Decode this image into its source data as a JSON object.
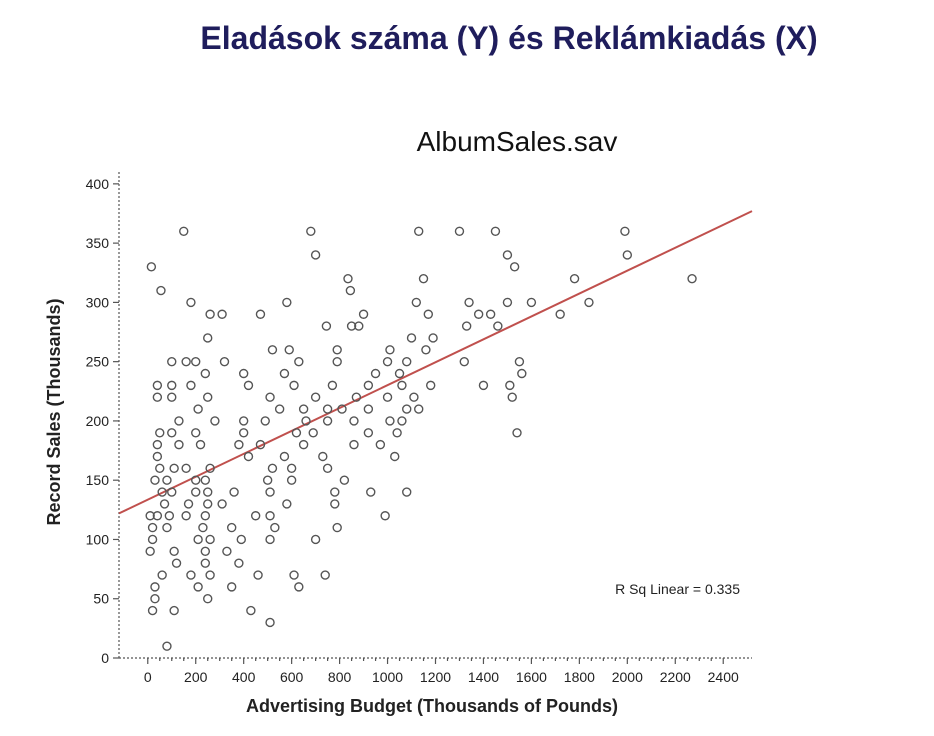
{
  "slide": {
    "title": "Eladások száma (Y) és Reklámkiadás (X)"
  },
  "chart_data": {
    "type": "scatter",
    "title": "AlbumSales.sav",
    "xlabel": "Advertising Budget (Thousands of Pounds)",
    "ylabel": "Record Sales (Thousands)",
    "xlim": [
      -120,
      2520
    ],
    "ylim": [
      0,
      410
    ],
    "x_ticks": [
      0,
      200,
      400,
      600,
      800,
      1000,
      1200,
      1400,
      1600,
      1800,
      2000,
      2200,
      2400
    ],
    "y_ticks": [
      0,
      50,
      100,
      150,
      200,
      250,
      300,
      350,
      400
    ],
    "annotation": "R Sq Linear = 0.335",
    "fit_line": {
      "x": [
        -120,
        2520
      ],
      "y": [
        122,
        377
      ]
    },
    "colors": {
      "title": "#1f1d5c",
      "points": "#555555",
      "fit": "#c0504d"
    },
    "grid": false,
    "points": [
      [
        15,
        330
      ],
      [
        55,
        310
      ],
      [
        150,
        360
      ],
      [
        680,
        360
      ],
      [
        700,
        340
      ],
      [
        1130,
        360
      ],
      [
        1300,
        360
      ],
      [
        1450,
        360
      ],
      [
        1990,
        360
      ],
      [
        2000,
        340
      ],
      [
        1500,
        340
      ],
      [
        1530,
        330
      ],
      [
        1150,
        320
      ],
      [
        835,
        320
      ],
      [
        845,
        310
      ],
      [
        1780,
        320
      ],
      [
        2270,
        320
      ],
      [
        180,
        300
      ],
      [
        580,
        300
      ],
      [
        1120,
        300
      ],
      [
        1340,
        300
      ],
      [
        1500,
        300
      ],
      [
        1600,
        300
      ],
      [
        1840,
        300
      ],
      [
        260,
        290
      ],
      [
        310,
        290
      ],
      [
        470,
        290
      ],
      [
        900,
        290
      ],
      [
        1380,
        290
      ],
      [
        1430,
        290
      ],
      [
        1170,
        290
      ],
      [
        1720,
        290
      ],
      [
        745,
        280
      ],
      [
        850,
        280
      ],
      [
        880,
        280
      ],
      [
        1330,
        280
      ],
      [
        1460,
        280
      ],
      [
        250,
        270
      ],
      [
        1100,
        270
      ],
      [
        1190,
        270
      ],
      [
        520,
        260
      ],
      [
        590,
        260
      ],
      [
        790,
        260
      ],
      [
        1010,
        260
      ],
      [
        1160,
        260
      ],
      [
        100,
        250
      ],
      [
        160,
        250
      ],
      [
        200,
        250
      ],
      [
        320,
        250
      ],
      [
        630,
        250
      ],
      [
        790,
        250
      ],
      [
        1000,
        250
      ],
      [
        1080,
        250
      ],
      [
        1320,
        250
      ],
      [
        1550,
        250
      ],
      [
        240,
        240
      ],
      [
        400,
        240
      ],
      [
        570,
        240
      ],
      [
        950,
        240
      ],
      [
        1050,
        240
      ],
      [
        1560,
        240
      ],
      [
        40,
        230
      ],
      [
        100,
        230
      ],
      [
        180,
        230
      ],
      [
        420,
        230
      ],
      [
        610,
        230
      ],
      [
        770,
        230
      ],
      [
        920,
        230
      ],
      [
        1060,
        230
      ],
      [
        1180,
        230
      ],
      [
        1400,
        230
      ],
      [
        1510,
        230
      ],
      [
        40,
        220
      ],
      [
        100,
        220
      ],
      [
        250,
        220
      ],
      [
        510,
        220
      ],
      [
        700,
        220
      ],
      [
        870,
        220
      ],
      [
        1000,
        220
      ],
      [
        1110,
        220
      ],
      [
        1520,
        220
      ],
      [
        210,
        210
      ],
      [
        550,
        210
      ],
      [
        650,
        210
      ],
      [
        750,
        210
      ],
      [
        810,
        210
      ],
      [
        920,
        210
      ],
      [
        1080,
        210
      ],
      [
        1130,
        210
      ],
      [
        130,
        200
      ],
      [
        280,
        200
      ],
      [
        400,
        200
      ],
      [
        490,
        200
      ],
      [
        660,
        200
      ],
      [
        750,
        200
      ],
      [
        860,
        200
      ],
      [
        1010,
        200
      ],
      [
        1060,
        200
      ],
      [
        50,
        190
      ],
      [
        100,
        190
      ],
      [
        200,
        190
      ],
      [
        400,
        190
      ],
      [
        620,
        190
      ],
      [
        690,
        190
      ],
      [
        920,
        190
      ],
      [
        1040,
        190
      ],
      [
        1540,
        190
      ],
      [
        40,
        180
      ],
      [
        130,
        180
      ],
      [
        220,
        180
      ],
      [
        380,
        180
      ],
      [
        470,
        180
      ],
      [
        650,
        180
      ],
      [
        860,
        180
      ],
      [
        970,
        180
      ],
      [
        40,
        170
      ],
      [
        420,
        170
      ],
      [
        570,
        170
      ],
      [
        730,
        170
      ],
      [
        1030,
        170
      ],
      [
        50,
        160
      ],
      [
        110,
        160
      ],
      [
        160,
        160
      ],
      [
        260,
        160
      ],
      [
        520,
        160
      ],
      [
        600,
        160
      ],
      [
        750,
        160
      ],
      [
        30,
        150
      ],
      [
        80,
        150
      ],
      [
        200,
        150
      ],
      [
        240,
        150
      ],
      [
        500,
        150
      ],
      [
        600,
        150
      ],
      [
        820,
        150
      ],
      [
        60,
        140
      ],
      [
        100,
        140
      ],
      [
        200,
        140
      ],
      [
        250,
        140
      ],
      [
        360,
        140
      ],
      [
        510,
        140
      ],
      [
        780,
        140
      ],
      [
        930,
        140
      ],
      [
        1080,
        140
      ],
      [
        70,
        130
      ],
      [
        170,
        130
      ],
      [
        250,
        130
      ],
      [
        310,
        130
      ],
      [
        580,
        130
      ],
      [
        780,
        130
      ],
      [
        10,
        120
      ],
      [
        40,
        120
      ],
      [
        90,
        120
      ],
      [
        160,
        120
      ],
      [
        240,
        120
      ],
      [
        450,
        120
      ],
      [
        510,
        120
      ],
      [
        990,
        120
      ],
      [
        20,
        110
      ],
      [
        80,
        110
      ],
      [
        230,
        110
      ],
      [
        350,
        110
      ],
      [
        530,
        110
      ],
      [
        790,
        110
      ],
      [
        20,
        100
      ],
      [
        210,
        100
      ],
      [
        260,
        100
      ],
      [
        390,
        100
      ],
      [
        510,
        100
      ],
      [
        700,
        100
      ],
      [
        10,
        90
      ],
      [
        110,
        90
      ],
      [
        240,
        90
      ],
      [
        330,
        90
      ],
      [
        120,
        80
      ],
      [
        240,
        80
      ],
      [
        380,
        80
      ],
      [
        60,
        70
      ],
      [
        180,
        70
      ],
      [
        260,
        70
      ],
      [
        460,
        70
      ],
      [
        610,
        70
      ],
      [
        740,
        70
      ],
      [
        30,
        60
      ],
      [
        210,
        60
      ],
      [
        350,
        60
      ],
      [
        630,
        60
      ],
      [
        30,
        50
      ],
      [
        250,
        50
      ],
      [
        20,
        40
      ],
      [
        110,
        40
      ],
      [
        430,
        40
      ],
      [
        510,
        30
      ],
      [
        80,
        10
      ]
    ]
  }
}
